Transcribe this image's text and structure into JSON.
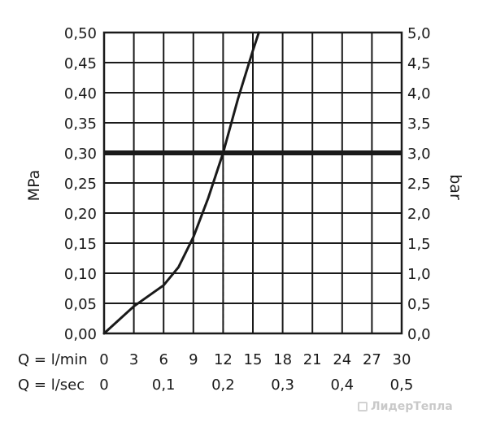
{
  "chart_data": {
    "type": "line",
    "x": [
      0,
      3,
      6,
      7.5,
      9,
      10.5,
      12,
      13.5,
      15,
      15.6
    ],
    "series": [
      {
        "values": [
          0,
          0.045,
          0.08,
          0.11,
          0.16,
          0.225,
          0.3,
          0.39,
          0.47,
          0.5
        ]
      }
    ],
    "xlim": [
      0,
      30
    ],
    "ylim": [
      0,
      0.5
    ],
    "x_ticks": [
      "0",
      "3",
      "6",
      "9",
      "12",
      "15",
      "18",
      "21",
      "24",
      "27",
      "30"
    ],
    "x_ticks_values": [
      0,
      3,
      6,
      9,
      12,
      15,
      18,
      21,
      24,
      27,
      30
    ],
    "x2_ticks": [
      "0",
      "0,1",
      "0,2",
      "0,3",
      "0,4",
      "0,5"
    ],
    "x2_ticks_values": [
      0,
      6,
      12,
      18,
      24,
      30
    ],
    "y_ticks": [
      "0,00",
      "0,05",
      "0,10",
      "0,15",
      "0,20",
      "0,25",
      "0,30",
      "0,35",
      "0,40",
      "0,45",
      "0,50"
    ],
    "y_ticks_values": [
      0,
      0.05,
      0.1,
      0.15,
      0.2,
      0.25,
      0.3,
      0.35,
      0.4,
      0.45,
      0.5
    ],
    "y2_ticks": [
      "0,0",
      "0,5",
      "1,0",
      "1,5",
      "2,0",
      "2,5",
      "3,0",
      "3,5",
      "4,0",
      "4,5",
      "5,0"
    ],
    "ylabel": "MPa",
    "y2label": "bar",
    "row1_label": "Q = l/min",
    "row2_label": "Q = l/sec",
    "reference_line": {
      "y": 0.3
    },
    "marker": {
      "x": 12,
      "y": 0.3
    },
    "grid": true
  },
  "watermark": "ЛидерТепла",
  "colors": {
    "ink": "#1a1a1a",
    "grid": "#1a1a1a",
    "watermark": "#c9c9c9"
  }
}
